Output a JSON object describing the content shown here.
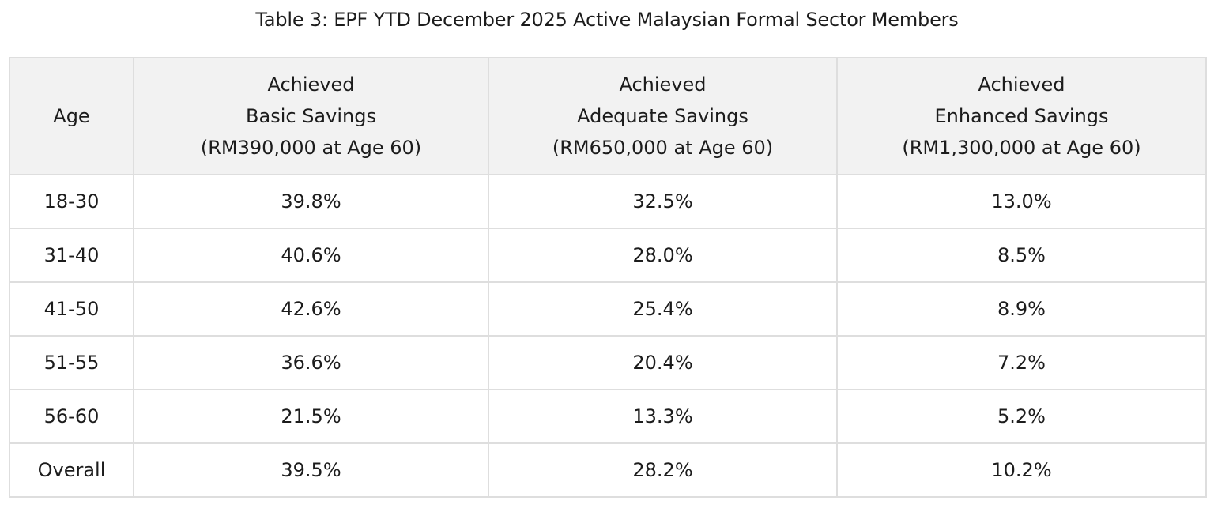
{
  "title": "Table 3: EPF YTD December 2025 Active Malaysian Formal Sector Members",
  "columns": {
    "age": "Age",
    "basic": [
      "Achieved",
      "Basic Savings",
      "(RM390,000 at Age 60)"
    ],
    "adequate": [
      "Achieved",
      "Adequate Savings",
      "(RM650,000 at Age 60)"
    ],
    "enhanced": [
      "Achieved",
      "Enhanced Savings",
      "(RM1,300,000 at Age 60)"
    ]
  },
  "rows": [
    {
      "age": "18-30",
      "basic": "39.8%",
      "adequate": "32.5%",
      "enhanced": "13.0%"
    },
    {
      "age": "31-40",
      "basic": "40.6%",
      "adequate": "28.0%",
      "enhanced": "8.5%"
    },
    {
      "age": "41-50",
      "basic": "42.6%",
      "adequate": "25.4%",
      "enhanced": "8.9%"
    },
    {
      "age": "51-55",
      "basic": "36.6%",
      "adequate": "20.4%",
      "enhanced": "7.2%"
    },
    {
      "age": "56-60",
      "basic": "21.5%",
      "adequate": "13.3%",
      "enhanced": "5.2%"
    },
    {
      "age": "Overall",
      "basic": "39.5%",
      "adequate": "28.2%",
      "enhanced": "10.2%"
    }
  ],
  "colors": {
    "header_background": "#f2f2f2",
    "border": "#dedede",
    "text": "#1c1c1c"
  }
}
